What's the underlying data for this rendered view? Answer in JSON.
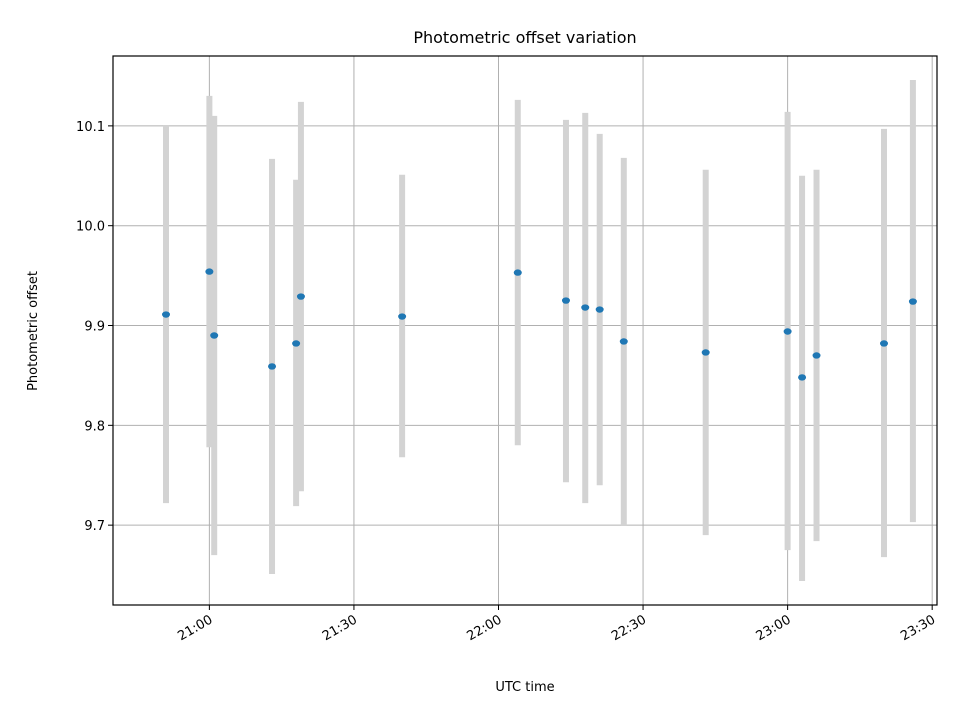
{
  "chart_data": {
    "type": "scatter",
    "title": "Photometric offset variation",
    "xlabel": "UTC time",
    "ylabel": "Photometric offset",
    "x_ticks": [
      "21:00",
      "21:30",
      "22:00",
      "22:30",
      "23:00",
      "23:30"
    ],
    "y_ticks": [
      "9.7",
      "9.8",
      "9.9",
      "10.0",
      "10.1"
    ],
    "xlim": [
      "20:40",
      "23:31"
    ],
    "ylim": [
      9.62,
      10.17
    ],
    "grid": true,
    "marker_color": "#1f77b4",
    "errorbar_color": "#d3d3d3",
    "points": [
      {
        "time": "20:51",
        "y": 9.911,
        "low": 9.722,
        "high": 10.1
      },
      {
        "time": "21:00",
        "y": 9.954,
        "low": 9.778,
        "high": 10.13
      },
      {
        "time": "21:01",
        "y": 9.89,
        "low": 9.67,
        "high": 10.11
      },
      {
        "time": "21:13",
        "y": 9.859,
        "low": 9.651,
        "high": 10.067
      },
      {
        "time": "21:18",
        "y": 9.882,
        "low": 9.719,
        "high": 10.046
      },
      {
        "time": "21:19",
        "y": 9.929,
        "low": 9.734,
        "high": 10.124
      },
      {
        "time": "21:40",
        "y": 9.909,
        "low": 9.768,
        "high": 10.051
      },
      {
        "time": "22:04",
        "y": 9.953,
        "low": 9.78,
        "high": 10.126
      },
      {
        "time": "22:14",
        "y": 9.925,
        "low": 9.743,
        "high": 10.106
      },
      {
        "time": "22:18",
        "y": 9.918,
        "low": 9.722,
        "high": 10.113
      },
      {
        "time": "22:21",
        "y": 9.916,
        "low": 9.74,
        "high": 10.092
      },
      {
        "time": "22:26",
        "y": 9.884,
        "low": 9.7,
        "high": 10.068
      },
      {
        "time": "22:43",
        "y": 9.873,
        "low": 9.69,
        "high": 10.056
      },
      {
        "time": "23:00",
        "y": 9.894,
        "low": 9.675,
        "high": 10.114
      },
      {
        "time": "23:03",
        "y": 9.848,
        "low": 9.644,
        "high": 10.05
      },
      {
        "time": "23:06",
        "y": 9.87,
        "low": 9.684,
        "high": 10.056
      },
      {
        "time": "23:20",
        "y": 9.882,
        "low": 9.668,
        "high": 10.097
      },
      {
        "time": "23:26",
        "y": 9.924,
        "low": 9.703,
        "high": 10.146
      }
    ]
  }
}
